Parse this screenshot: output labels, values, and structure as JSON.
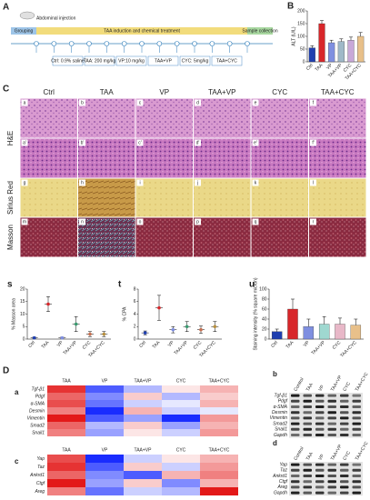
{
  "panel_labels": [
    "A",
    "C",
    "D"
  ],
  "timeline": {
    "injection": "Abdominal injection",
    "phases": [
      "Grouping",
      "TAA induction and chemical treatment",
      "Sample collection"
    ],
    "groups": [
      "Ctrl: 0.9% saline",
      "TAA: 200 mg/kg",
      "VP:10 mg/kg",
      "TAA+VP",
      "CYC: 5mg/kg",
      "TAA+CYC"
    ]
  },
  "chart_data": [
    {
      "type": "bar",
      "panel": "B",
      "ylabel": "ALT (U/L)",
      "categories": [
        "Ctrl",
        "TAA",
        "VP",
        "TAA+VP",
        "CYC",
        "TAA+CYC"
      ],
      "values": [
        55,
        150,
        75,
        80,
        85,
        100
      ],
      "errors": [
        8,
        12,
        10,
        10,
        12,
        15
      ],
      "colors": [
        "#1f3fb0",
        "#d8262a",
        "#7f8fe0",
        "#9fb8c8",
        "#c8a8d8",
        "#e8c08a"
      ],
      "ylim": [
        0,
        200
      ],
      "yticks": [
        0,
        50,
        100,
        150,
        200
      ]
    },
    {
      "type": "scatter",
      "panel": "s",
      "ylabel": "% Masson area",
      "categories": [
        "Ctrl",
        "TAA",
        "VP",
        "TAA+VP",
        "CYC",
        "TAA+CYC"
      ],
      "values": [
        0.5,
        14,
        0.5,
        6,
        2,
        2
      ],
      "errors": [
        0.3,
        3,
        0.3,
        3,
        1,
        1
      ],
      "colors": [
        "#1f3fb0",
        "#d8262a",
        "#7f8fe0",
        "#3a9a70",
        "#c87050",
        "#b89040"
      ],
      "ylim": [
        0,
        20
      ],
      "yticks": [
        0,
        5,
        10,
        15,
        20
      ]
    },
    {
      "type": "scatter",
      "panel": "t",
      "ylabel": "% CPA",
      "categories": [
        "Ctrl",
        "TAA",
        "VP",
        "TAA+VP",
        "CYC",
        "TAA+CYC"
      ],
      "values": [
        1,
        5,
        1.5,
        2,
        1.5,
        2
      ],
      "errors": [
        0.3,
        2,
        0.5,
        0.8,
        0.6,
        0.8
      ],
      "colors": [
        "#1f3fb0",
        "#d8262a",
        "#7f8fe0",
        "#3a9a70",
        "#c87050",
        "#b89040"
      ],
      "ylim": [
        0,
        8
      ],
      "yticks": [
        0,
        2,
        4,
        6,
        8
      ]
    },
    {
      "type": "bar",
      "panel": "u",
      "ylabel": "Staining intensity (% square micron)",
      "categories": [
        "Ctrl",
        "TAA",
        "VP",
        "TAA+VP",
        "CYC",
        "TAA+CYC"
      ],
      "values": [
        15,
        60,
        25,
        30,
        30,
        28
      ],
      "errors": [
        5,
        20,
        15,
        15,
        12,
        12
      ],
      "colors": [
        "#1f3fb0",
        "#d8262a",
        "#7f8fe0",
        "#9fd8d0",
        "#e8b8c8",
        "#e8c08a"
      ],
      "ylim": [
        0,
        100
      ],
      "yticks": [
        0,
        20,
        40,
        60,
        80,
        100
      ]
    }
  ],
  "histology": {
    "columns": [
      "Ctrl",
      "TAA",
      "VP",
      "TAA+VP",
      "CYC",
      "TAA+CYC"
    ],
    "rows": [
      "H&E",
      "Sirius Red",
      "Masson"
    ],
    "tiles": [
      "a",
      "b",
      "c",
      "d",
      "e",
      "f",
      "a'",
      "b'",
      "c'",
      "d'",
      "e'",
      "f'",
      "g",
      "h",
      "i",
      "j",
      "k",
      "l",
      "m",
      "n",
      "o",
      "p",
      "q",
      "r"
    ]
  },
  "heatmaps": [
    {
      "panel": "a",
      "columns": [
        "TAA",
        "VP",
        "TAA+VP",
        "CYC",
        "TAA+CYC"
      ],
      "genes": [
        "Tgf-β1",
        "Pdgf",
        "α-SMA",
        "Desmin",
        "Vimentin",
        "Smad2",
        "Snail1"
      ],
      "values": [
        [
          0.8,
          -0.7,
          -0.3,
          0.1,
          0.3
        ],
        [
          0.6,
          -0.5,
          0.2,
          -0.3,
          0.2
        ],
        [
          0.7,
          -0.6,
          -0.2,
          -0.1,
          0.3
        ],
        [
          0.5,
          -0.9,
          0.3,
          -0.2,
          -0.1
        ],
        [
          0.9,
          -0.7,
          -0.4,
          -0.9,
          0.4
        ],
        [
          0.6,
          -0.3,
          0.2,
          -0.4,
          0.3
        ],
        [
          0.5,
          -0.4,
          0.1,
          -0.2,
          0.4
        ]
      ]
    },
    {
      "panel": "c",
      "columns": [
        "TAA",
        "VP",
        "TAA+VP",
        "CYC",
        "TAA+CYC"
      ],
      "genes": [
        "Yap",
        "Taz",
        "Ankrd1",
        "Ctgf",
        "Areg"
      ],
      "values": [
        [
          0.7,
          -0.9,
          -0.2,
          0.1,
          0.3
        ],
        [
          0.8,
          -0.7,
          0.2,
          -0.2,
          0.4
        ],
        [
          0.6,
          -0.5,
          -0.7,
          0.3,
          0.5
        ],
        [
          0.9,
          -0.4,
          0.2,
          -0.5,
          0.3
        ],
        [
          0.5,
          -0.6,
          -0.2,
          -0.3,
          0.9
        ]
      ]
    }
  ],
  "blots": [
    {
      "panel": "b",
      "lanes": [
        "Control",
        "TAA",
        "VP",
        "TAA+VP",
        "CYC",
        "TAA+CYC"
      ],
      "genes": [
        "Tgf-β1",
        "Pdgf",
        "α-SMA",
        "Desmin",
        "Vimentin",
        "Smad2",
        "Snail1",
        "Gapdh"
      ]
    },
    {
      "panel": "d",
      "lanes": [
        "Control",
        "TAA",
        "VP",
        "TAA+VP",
        "CYC",
        "TAA+CYC"
      ],
      "genes": [
        "Yap",
        "Taz",
        "Ankrd1",
        "Ctgf",
        "Areg",
        "Gapdh"
      ]
    }
  ]
}
